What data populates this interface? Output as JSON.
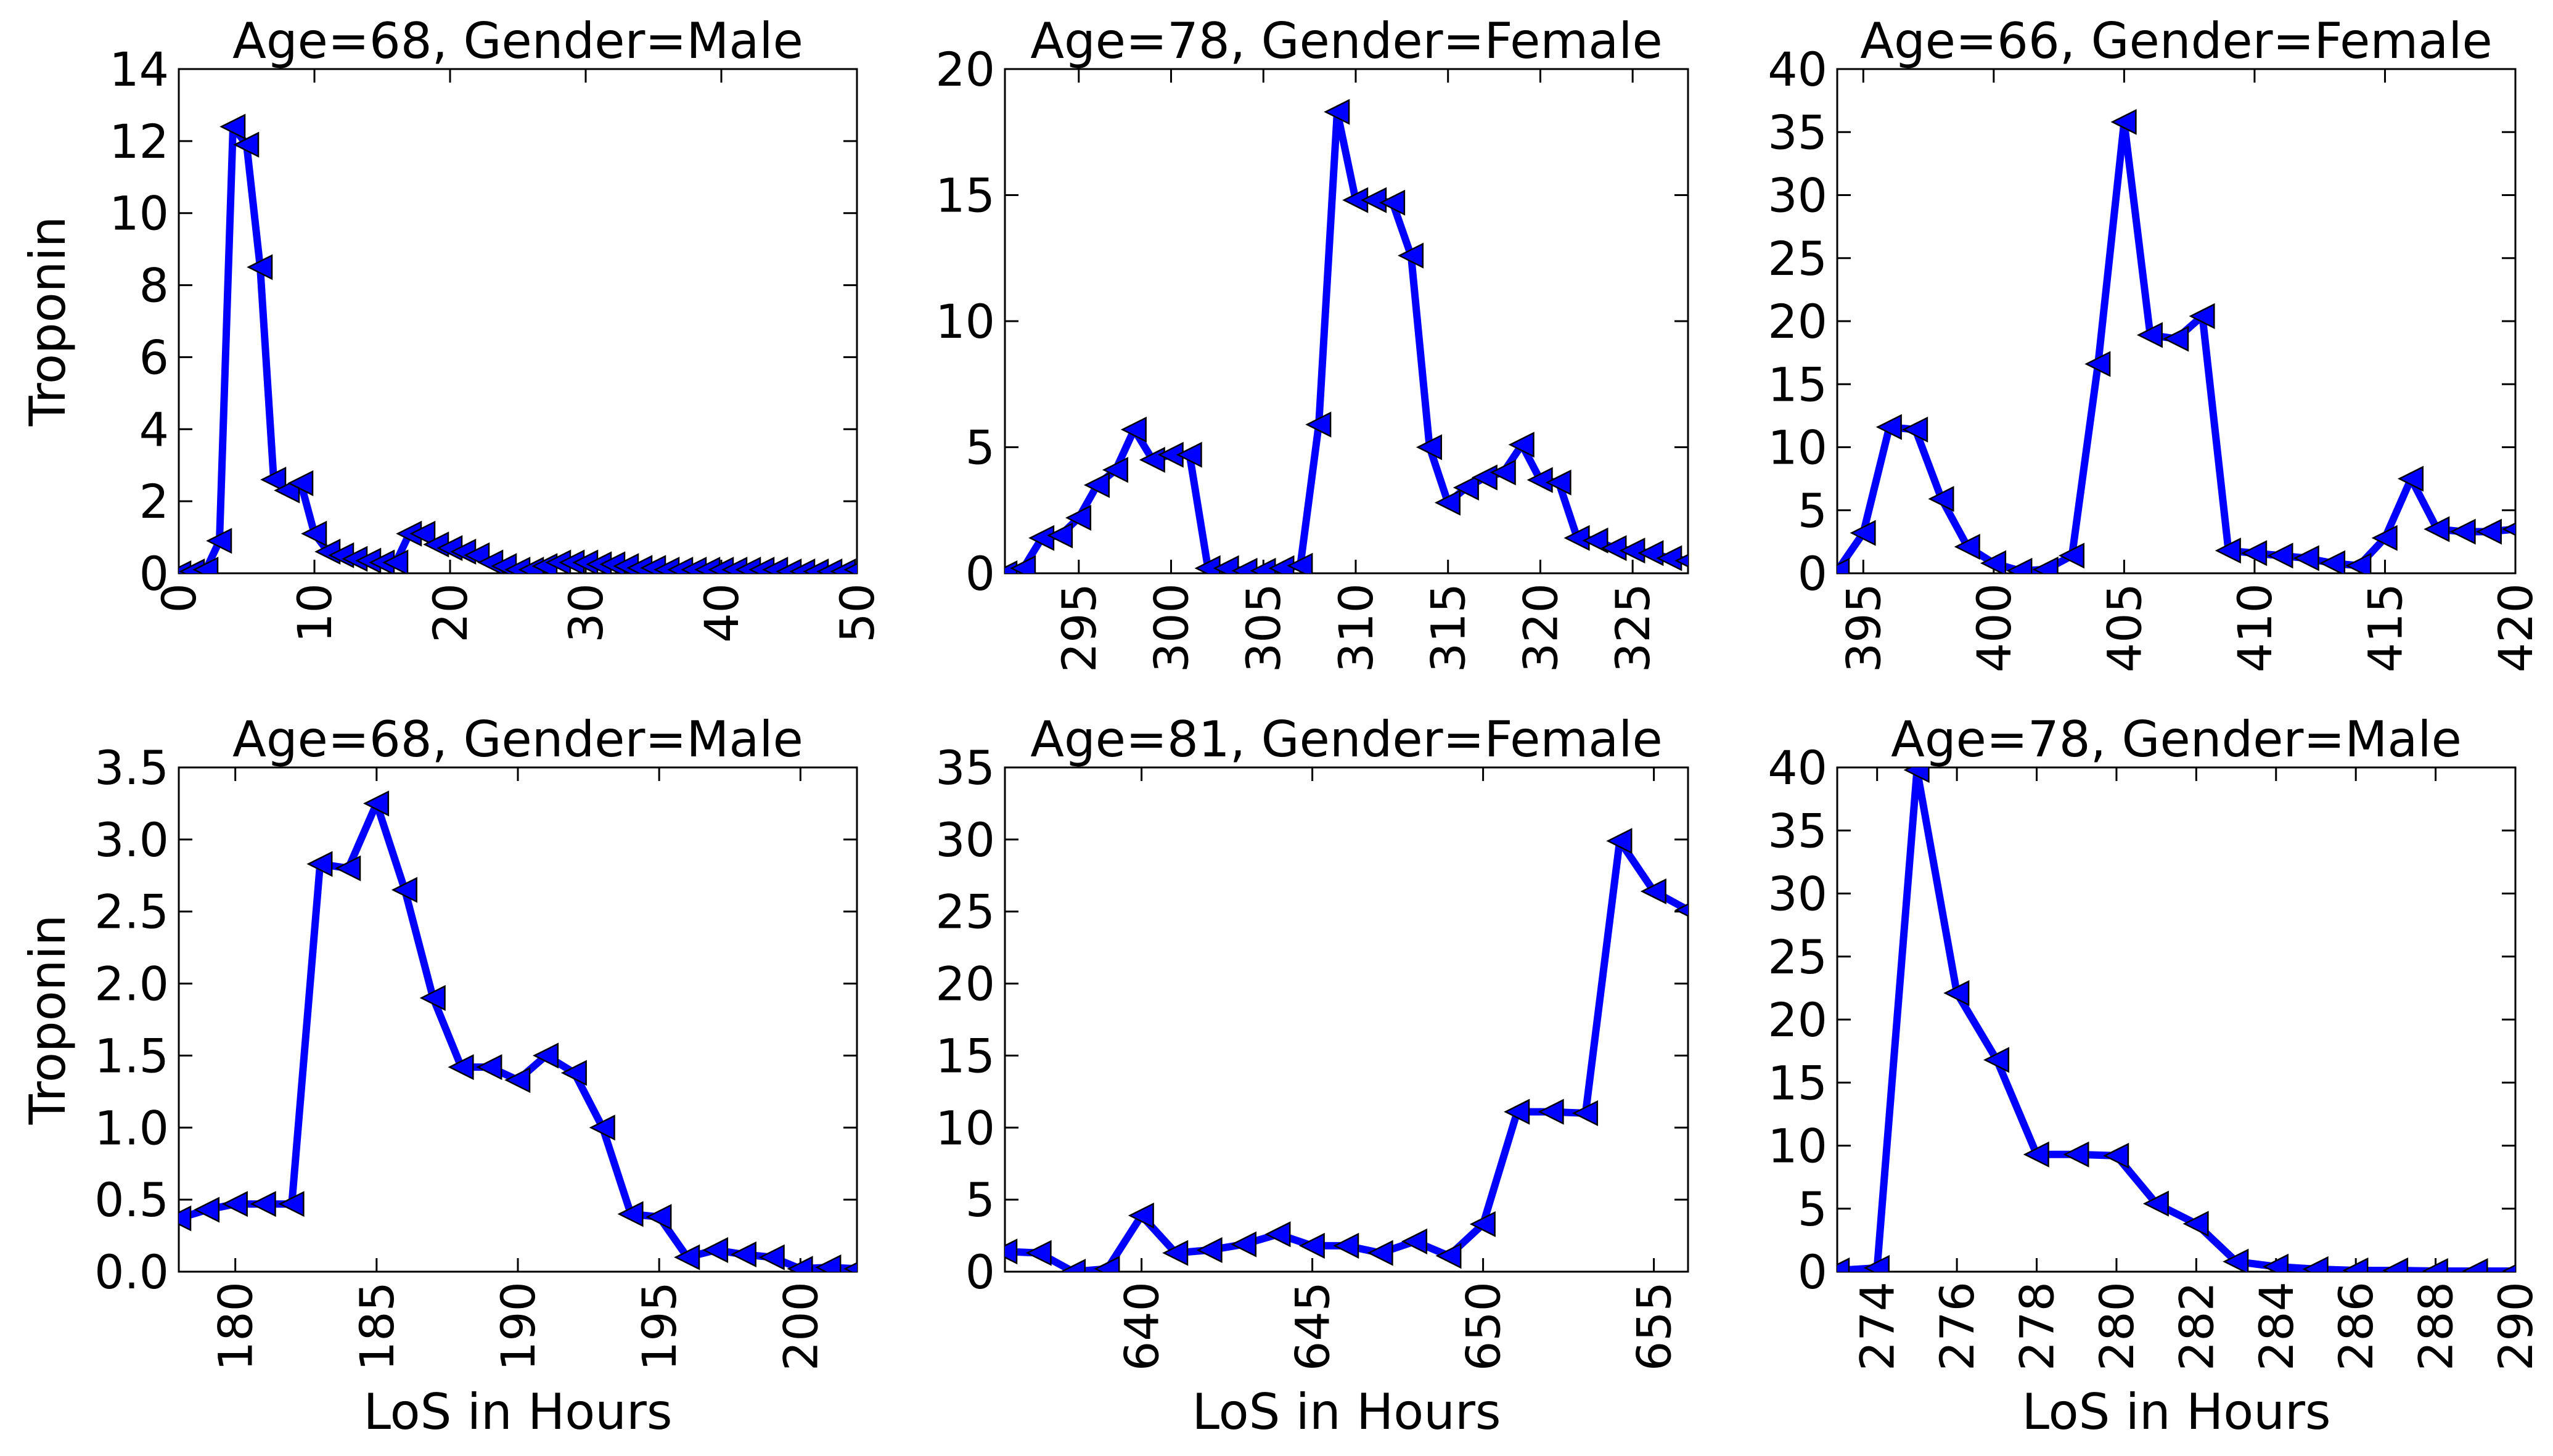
{
  "figure": {
    "ylabel": "Troponin",
    "xlabel": "LoS in Hours"
  },
  "style": {
    "line_color": "#0000ff",
    "marker": "left-triangle",
    "background": "#ffffff",
    "axis_color": "#000000"
  },
  "chart_data": [
    {
      "type": "line",
      "title": "Age=68, Gender=Male",
      "xlabel": "",
      "ylabel": "Troponin",
      "xlim": [
        0,
        50
      ],
      "ylim": [
        0,
        14
      ],
      "xticks": [
        0,
        10,
        20,
        30,
        40,
        50
      ],
      "yticks": [
        0,
        2,
        4,
        6,
        8,
        10,
        12,
        14
      ],
      "x": [
        0,
        1,
        2,
        3,
        4,
        5,
        6,
        7,
        8,
        9,
        10,
        11,
        12,
        13,
        14,
        15,
        16,
        17,
        18,
        19,
        20,
        21,
        22,
        23,
        24,
        25,
        26,
        27,
        28,
        29,
        30,
        31,
        32,
        33,
        34,
        35,
        36,
        37,
        38,
        39,
        40,
        41,
        42,
        43,
        44,
        45,
        46,
        47,
        48,
        49,
        50
      ],
      "y": [
        0.0,
        0.05,
        0.1,
        0.9,
        12.4,
        11.9,
        8.5,
        2.6,
        2.3,
        2.5,
        1.1,
        0.6,
        0.5,
        0.4,
        0.35,
        0.3,
        0.3,
        1.1,
        1.1,
        0.8,
        0.7,
        0.6,
        0.5,
        0.3,
        0.2,
        0.1,
        0.1,
        0.2,
        0.3,
        0.3,
        0.3,
        0.25,
        0.25,
        0.2,
        0.15,
        0.15,
        0.1,
        0.1,
        0.1,
        0.1,
        0.1,
        0.1,
        0.1,
        0.1,
        0.1,
        0.05,
        0.05,
        0.05,
        0.05,
        0.05,
        0.1
      ]
    },
    {
      "type": "line",
      "title": "Age=78, Gender=Female",
      "xlabel": "",
      "ylabel": "",
      "xlim": [
        291,
        328
      ],
      "ylim": [
        0,
        20
      ],
      "xticks": [
        295,
        300,
        305,
        310,
        315,
        320,
        325
      ],
      "yticks": [
        0,
        5,
        10,
        15,
        20
      ],
      "x": [
        291,
        292,
        293,
        294,
        295,
        296,
        297,
        298,
        299,
        300,
        301,
        302,
        303,
        304,
        305,
        306,
        307,
        308,
        309,
        310,
        311,
        312,
        313,
        314,
        315,
        316,
        317,
        318,
        319,
        320,
        321,
        322,
        323,
        324,
        325,
        326,
        327,
        328
      ],
      "y": [
        0.0,
        0.2,
        1.4,
        1.5,
        2.2,
        3.5,
        4.1,
        5.7,
        4.5,
        4.7,
        4.7,
        0.2,
        0.2,
        0.1,
        0.1,
        0.2,
        0.3,
        5.9,
        18.3,
        14.8,
        14.8,
        14.7,
        12.6,
        5.0,
        2.8,
        3.4,
        3.8,
        4.0,
        5.1,
        3.7,
        3.6,
        1.4,
        1.3,
        1.0,
        0.9,
        0.8,
        0.6,
        0.5
      ]
    },
    {
      "type": "line",
      "title": "Age=66, Gender=Female",
      "xlabel": "",
      "ylabel": "",
      "xlim": [
        394,
        420
      ],
      "ylim": [
        0,
        40
      ],
      "xticks": [
        395,
        400,
        405,
        410,
        415,
        420
      ],
      "yticks": [
        0,
        5,
        10,
        15,
        20,
        25,
        30,
        35,
        40
      ],
      "x": [
        394,
        395,
        396,
        397,
        398,
        399,
        400,
        401,
        402,
        403,
        404,
        405,
        406,
        407,
        408,
        409,
        410,
        411,
        412,
        413,
        414,
        415,
        416,
        417,
        418,
        419,
        420
      ],
      "y": [
        0.2,
        3.2,
        11.6,
        11.4,
        5.9,
        2.1,
        0.8,
        0.2,
        0.3,
        1.4,
        16.6,
        35.8,
        18.9,
        18.6,
        20.4,
        1.8,
        1.6,
        1.4,
        1.2,
        0.8,
        0.6,
        2.8,
        7.5,
        3.5,
        3.3,
        3.3,
        3.5
      ]
    },
    {
      "type": "line",
      "title": "Age=68, Gender=Male",
      "xlabel": "LoS in Hours",
      "ylabel": "Troponin",
      "xlim": [
        178,
        202
      ],
      "ylim": [
        0,
        3.5
      ],
      "xticks": [
        180,
        185,
        190,
        195,
        200
      ],
      "yticks": [
        0.0,
        0.5,
        1.0,
        1.5,
        2.0,
        2.5,
        3.0,
        3.5
      ],
      "x": [
        178,
        179,
        180,
        181,
        182,
        183,
        184,
        185,
        186,
        187,
        188,
        189,
        190,
        191,
        192,
        193,
        194,
        195,
        196,
        197,
        198,
        199,
        200,
        201,
        202
      ],
      "y": [
        0.37,
        0.43,
        0.47,
        0.47,
        0.47,
        2.83,
        2.8,
        3.25,
        2.65,
        1.9,
        1.42,
        1.42,
        1.33,
        1.5,
        1.38,
        1.0,
        0.4,
        0.38,
        0.1,
        0.15,
        0.12,
        0.1,
        0.02,
        0.03,
        0.02
      ]
    },
    {
      "type": "line",
      "title": "Age=81, Gender=Female",
      "xlabel": "LoS in Hours",
      "ylabel": "",
      "xlim": [
        636,
        656
      ],
      "ylim": [
        0,
        35
      ],
      "xticks": [
        640,
        645,
        650,
        655
      ],
      "yticks": [
        0,
        5,
        10,
        15,
        20,
        25,
        30,
        35
      ],
      "x": [
        636,
        637,
        638,
        639,
        640,
        641,
        642,
        643,
        644,
        645,
        646,
        647,
        648,
        649,
        650,
        651,
        652,
        653,
        654,
        655,
        656
      ],
      "y": [
        1.4,
        1.3,
        0.0,
        0.2,
        3.9,
        1.3,
        1.5,
        1.9,
        2.6,
        1.8,
        1.8,
        1.3,
        2.1,
        1.1,
        3.3,
        11.1,
        11.1,
        11.0,
        29.9,
        26.4,
        25.1
      ]
    },
    {
      "type": "line",
      "title": "Age=78, Gender=Male",
      "xlabel": "LoS in Hours",
      "ylabel": "",
      "xlim": [
        273,
        290
      ],
      "ylim": [
        0,
        40
      ],
      "xticks": [
        274,
        276,
        278,
        280,
        282,
        284,
        286,
        288,
        290
      ],
      "yticks": [
        0,
        5,
        10,
        15,
        20,
        25,
        30,
        35,
        40
      ],
      "x": [
        273,
        274,
        275,
        276,
        277,
        278,
        279,
        280,
        281,
        282,
        283,
        284,
        285,
        286,
        287,
        288,
        289,
        290
      ],
      "y": [
        0.1,
        0.3,
        39.8,
        22.1,
        16.8,
        9.3,
        9.3,
        9.2,
        5.4,
        3.8,
        0.8,
        0.4,
        0.2,
        0.1,
        0.1,
        0.05,
        0.05,
        0.05
      ]
    }
  ]
}
